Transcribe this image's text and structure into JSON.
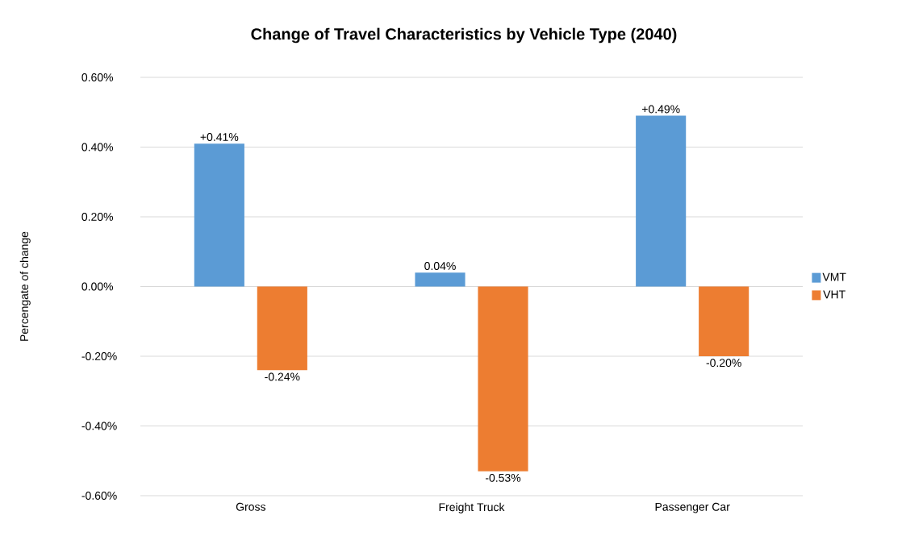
{
  "chart_data": {
    "type": "bar",
    "title": "Change of Travel Characteristics by Vehicle Type (2040)",
    "ylabel": "Percengate of change",
    "categories": [
      "Gross",
      "Freight Truck",
      "Passenger Car"
    ],
    "series": [
      {
        "name": "VMT",
        "color": "#5b9bd5",
        "values": [
          0.41,
          0.04,
          0.49
        ],
        "value_labels": [
          "+0.41%",
          "0.04%",
          "+0.49%"
        ]
      },
      {
        "name": "VHT",
        "color": "#ed7d31",
        "values": [
          -0.24,
          -0.53,
          -0.2
        ],
        "value_labels": [
          "-0.24%",
          "-0.53%",
          "-0.20%"
        ]
      }
    ],
    "ylim": [
      -0.6,
      0.6
    ],
    "yticks": [
      {
        "value": -0.6,
        "label": "-0.60%"
      },
      {
        "value": -0.4,
        "label": "-0.40%"
      },
      {
        "value": -0.2,
        "label": "-0.20%"
      },
      {
        "value": 0,
        "label": "0.00%"
      },
      {
        "value": 0.2,
        "label": "0.20%"
      },
      {
        "value": 0.4,
        "label": "0.40%"
      },
      {
        "value": 0.6,
        "label": "0.60%"
      }
    ],
    "grid": "y",
    "legend": "right"
  }
}
